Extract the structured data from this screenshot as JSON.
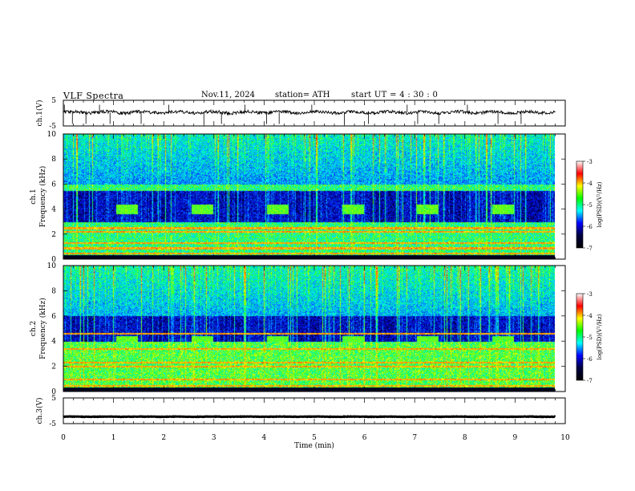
{
  "header": {
    "title": "VLF  Spectra",
    "date": "Nov.11, 2024",
    "station": "station= ATH",
    "start_ut": "start  UT  =   4  : 30 : 0"
  },
  "colorbar": {
    "label": "log(PSD)(V²/Hz)",
    "ticks": [
      "-3",
      "-4",
      "-5",
      "-6",
      "-7"
    ],
    "colors": [
      "#ffffff",
      "#ff0000",
      "#ffff00",
      "#00ff00",
      "#00ffff",
      "#0000ff",
      "#000040",
      "#000000"
    ]
  },
  "chart_data": [
    {
      "type": "line",
      "name": "ch1-waveform",
      "ylabel": "ch.1(V)",
      "yticks": [
        "5",
        "-5"
      ],
      "ylim": [
        -5,
        5
      ],
      "xlim": [
        0,
        9.8
      ],
      "baseline": 0.3,
      "noise": 1.2,
      "spikes": [
        0.02,
        0.18,
        0.45,
        0.72,
        0.93,
        1.55,
        2.1,
        2.8,
        3.15,
        3.62,
        4.05,
        4.3,
        4.95,
        5.6,
        6.08,
        6.85,
        7.06,
        7.48,
        8.05,
        8.66,
        9.12
      ]
    },
    {
      "type": "heatmap",
      "name": "ch1-spectrogram",
      "ylabel": "ch.1\nFrequency (kHz)",
      "yticks": [
        "10",
        "8",
        "6",
        "4",
        "2",
        "0"
      ],
      "ylim": [
        0,
        10
      ],
      "xlim": [
        0,
        9.8
      ],
      "zlim": [
        -7,
        -3
      ],
      "zlabel": "log(PSD)(V²/Hz)",
      "bursts_min": [
        1.1,
        2.6,
        4.1,
        5.6,
        7.1,
        8.6
      ],
      "burst_band_khz": [
        3.6,
        4.4
      ],
      "hiss_band_khz": [
        3.0,
        5.5
      ],
      "strong_lines_khz": [
        0.2,
        0.5,
        0.9,
        1.3,
        2.2,
        2.5
      ],
      "lower_band_level": -4.6,
      "upper_band_level": -4.8
    },
    {
      "type": "heatmap",
      "name": "ch2-spectrogram",
      "ylabel": "ch.2\nFrequency (kHz)",
      "yticks": [
        "10",
        "8",
        "6",
        "4",
        "2",
        "0"
      ],
      "ylim": [
        0,
        10
      ],
      "xlim": [
        0,
        9.8
      ],
      "zlim": [
        -7,
        -3
      ],
      "zlabel": "log(PSD)(V²/Hz)",
      "bursts_min": [
        1.1,
        2.6,
        4.1,
        5.6,
        7.1,
        8.6
      ],
      "burst_band_khz": [
        3.6,
        4.4
      ],
      "hiss_band_khz": [
        4.0,
        6.0
      ],
      "strong_lines_khz": [
        0.2,
        0.5,
        1.0,
        2.0,
        2.3,
        3.4,
        4.6
      ],
      "lower_band_level": -4.4,
      "upper_band_level": -4.7
    },
    {
      "type": "line",
      "name": "ch3-waveform",
      "ylabel": "ch.3(V)",
      "yticks": [
        "5",
        "-5"
      ],
      "ylim": [
        -5,
        5
      ],
      "xlim": [
        0,
        9.8
      ],
      "baseline": -2.3,
      "noise": 0.15,
      "spikes": []
    },
    {
      "type": "axis",
      "name": "time-axis",
      "xlabel": "Time  (min)",
      "xticks": [
        "0",
        "1",
        "2",
        "3",
        "4",
        "5",
        "6",
        "7",
        "8",
        "9",
        "10"
      ],
      "xlim": [
        0,
        10
      ]
    }
  ]
}
